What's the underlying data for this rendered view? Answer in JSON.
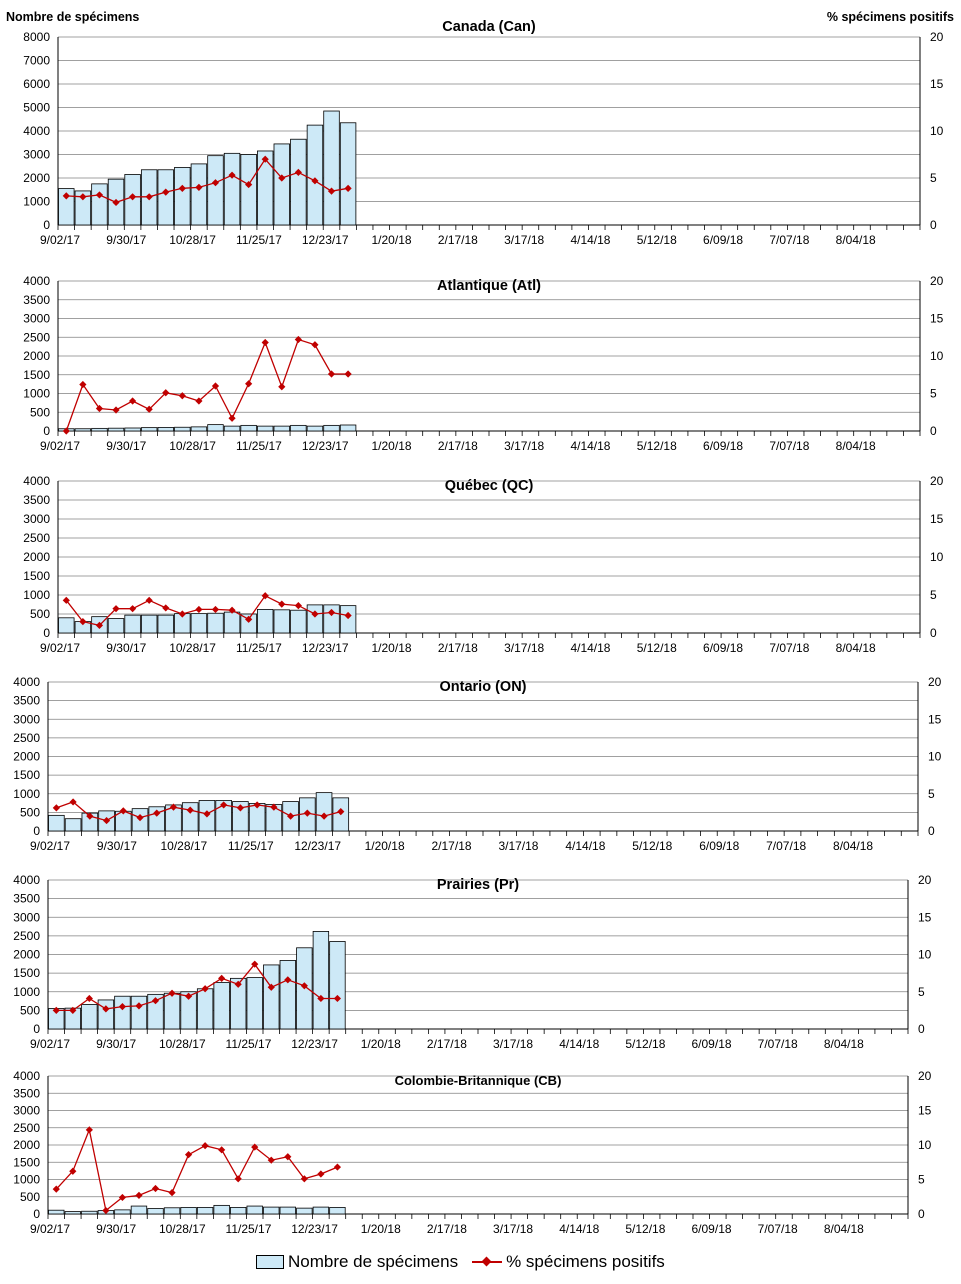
{
  "header": {
    "left_axis_title": "Nombre de spécimens",
    "right_axis_title": "% spécimens positifs"
  },
  "legend": {
    "bars_label": "Nombre de spécimens",
    "line_label": "% spécimens positifs"
  },
  "colors": {
    "bar_fill": "#cde9f7",
    "bar_stroke": "#000000",
    "line": "#c00000",
    "grid": "#808080"
  },
  "chart_data": [
    {
      "type": "bar",
      "title": "Canada (Can)",
      "x_tick_labels": [
        "9/02/17",
        "9/30/17",
        "10/28/17",
        "11/25/17",
        "12/23/17",
        "1/20/18",
        "2/17/18",
        "3/17/18",
        "4/14/18",
        "5/12/18",
        "6/09/18",
        "7/07/18",
        "8/04/18"
      ],
      "weeks_total": 52,
      "ylim": [
        0,
        8000
      ],
      "y_ticks": [
        0,
        1000,
        2000,
        3000,
        4000,
        5000,
        6000,
        7000,
        8000
      ],
      "y2lim": [
        0,
        20
      ],
      "y2_ticks": [
        0,
        5,
        10,
        15,
        20
      ],
      "series": [
        {
          "name": "Nombre de spécimens",
          "type": "bar",
          "values": [
            1550,
            1450,
            1750,
            1950,
            2150,
            2350,
            2350,
            2450,
            2600,
            2950,
            3050,
            3000,
            3150,
            3450,
            3650,
            4250,
            4850,
            4350
          ]
        },
        {
          "name": "% spécimens positifs",
          "type": "line",
          "axis": "right",
          "values": [
            3.1,
            3.0,
            3.2,
            2.4,
            3.0,
            3.0,
            3.5,
            3.9,
            4.0,
            4.5,
            5.3,
            4.3,
            7.0,
            5.0,
            5.6,
            4.7,
            3.6,
            3.9
          ]
        }
      ]
    },
    {
      "type": "bar",
      "title": "Atlantique (Atl)",
      "x_tick_labels": [
        "9/02/17",
        "9/30/17",
        "10/28/17",
        "11/25/17",
        "12/23/17",
        "1/20/18",
        "2/17/18",
        "3/17/18",
        "4/14/18",
        "5/12/18",
        "6/09/18",
        "7/07/18",
        "8/04/18"
      ],
      "weeks_total": 52,
      "ylim": [
        0,
        4000
      ],
      "y_ticks": [
        0,
        500,
        1000,
        1500,
        2000,
        2500,
        3000,
        3500,
        4000
      ],
      "y2lim": [
        0,
        20
      ],
      "y2_ticks": [
        0,
        5,
        10,
        15,
        20
      ],
      "series": [
        {
          "name": "Nombre de spécimens",
          "type": "bar",
          "values": [
            60,
            60,
            70,
            75,
            80,
            90,
            95,
            100,
            110,
            170,
            130,
            150,
            130,
            130,
            150,
            130,
            150,
            160
          ]
        },
        {
          "name": "% spécimens positifs",
          "type": "line",
          "axis": "right",
          "values": [
            0.0,
            6.2,
            3.0,
            2.8,
            4.0,
            2.9,
            5.1,
            4.7,
            4.0,
            6.0,
            1.7,
            6.3,
            11.8,
            5.9,
            12.2,
            11.5,
            7.6,
            7.6
          ]
        }
      ]
    },
    {
      "type": "bar",
      "title": "Québec (QC)",
      "x_tick_labels": [
        "9/02/17",
        "9/30/17",
        "10/28/17",
        "11/25/17",
        "12/23/17",
        "1/20/18",
        "2/17/18",
        "3/17/18",
        "4/14/18",
        "5/12/18",
        "6/09/18",
        "7/07/18",
        "8/04/18"
      ],
      "weeks_total": 52,
      "ylim": [
        0,
        4000
      ],
      "y_ticks": [
        0,
        500,
        1000,
        1500,
        2000,
        2500,
        3000,
        3500,
        4000
      ],
      "y2lim": [
        0,
        20
      ],
      "y2_ticks": [
        0,
        5,
        10,
        15,
        20
      ],
      "series": [
        {
          "name": "Nombre de spécimens",
          "type": "bar",
          "values": [
            400,
            300,
            430,
            380,
            470,
            470,
            470,
            510,
            510,
            520,
            550,
            500,
            620,
            610,
            600,
            740,
            740,
            720
          ]
        },
        {
          "name": "% spécimens positifs",
          "type": "line",
          "axis": "right",
          "values": [
            4.3,
            1.5,
            1.0,
            3.2,
            3.2,
            4.3,
            3.3,
            2.5,
            3.1,
            3.1,
            3.0,
            1.8,
            4.9,
            3.8,
            3.6,
            2.5,
            2.7,
            2.3
          ]
        }
      ]
    },
    {
      "type": "bar",
      "title": "Ontario (ON)",
      "x_tick_labels": [
        "9/02/17",
        "9/30/17",
        "10/28/17",
        "11/25/17",
        "12/23/17",
        "1/20/18",
        "2/17/18",
        "3/17/18",
        "4/14/18",
        "5/12/18",
        "6/09/18",
        "7/07/18",
        "8/04/18"
      ],
      "weeks_total": 52,
      "ylim": [
        0,
        4000
      ],
      "y_ticks": [
        0,
        500,
        1000,
        1500,
        2000,
        2500,
        3000,
        3500,
        4000
      ],
      "y2lim": [
        0,
        20
      ],
      "y2_ticks": [
        0,
        5,
        10,
        15,
        20
      ],
      "series": [
        {
          "name": "Nombre de spécimens",
          "type": "bar",
          "values": [
            420,
            330,
            480,
            540,
            530,
            600,
            650,
            700,
            760,
            820,
            820,
            790,
            740,
            710,
            790,
            890,
            1030,
            890
          ]
        },
        {
          "name": "% spécimens positifs",
          "type": "line",
          "axis": "right",
          "values": [
            3.1,
            3.9,
            2.0,
            1.4,
            2.7,
            1.8,
            2.4,
            3.2,
            2.8,
            2.3,
            3.5,
            3.1,
            3.5,
            3.2,
            2.0,
            2.4,
            2.0,
            2.6
          ]
        }
      ]
    },
    {
      "type": "bar",
      "title": "Prairies (Pr)",
      "x_tick_labels": [
        "9/02/17",
        "9/30/17",
        "10/28/17",
        "11/25/17",
        "12/23/17",
        "1/20/18",
        "2/17/18",
        "3/17/18",
        "4/14/18",
        "5/12/18",
        "6/09/18",
        "7/07/18",
        "8/04/18"
      ],
      "weeks_total": 52,
      "ylim": [
        0,
        4000
      ],
      "y_ticks": [
        0,
        500,
        1000,
        1500,
        2000,
        2500,
        3000,
        3500,
        4000
      ],
      "y2lim": [
        0,
        20
      ],
      "y2_ticks": [
        0,
        5,
        10,
        15,
        20
      ],
      "series": [
        {
          "name": "Nombre de spécimens",
          "type": "bar",
          "values": [
            550,
            560,
            660,
            780,
            880,
            880,
            930,
            960,
            1000,
            1080,
            1250,
            1360,
            1380,
            1720,
            1840,
            2180,
            2620,
            2350
          ]
        },
        {
          "name": "% spécimens positifs",
          "type": "line",
          "axis": "right",
          "values": [
            2.5,
            2.5,
            4.1,
            2.7,
            3.0,
            3.1,
            3.8,
            4.8,
            4.4,
            5.4,
            6.8,
            6.0,
            8.7,
            5.6,
            6.6,
            5.8,
            4.1,
            4.1
          ]
        }
      ]
    },
    {
      "type": "bar",
      "title": "Colombie-Britannique (CB)",
      "x_tick_labels": [
        "9/02/17",
        "9/30/17",
        "10/28/17",
        "11/25/17",
        "12/23/17",
        "1/20/18",
        "2/17/18",
        "3/17/18",
        "4/14/18",
        "5/12/18",
        "6/09/18",
        "7/07/18",
        "8/04/18"
      ],
      "weeks_total": 52,
      "ylim": [
        0,
        4000
      ],
      "y_ticks": [
        0,
        500,
        1000,
        1500,
        2000,
        2500,
        3000,
        3500,
        4000
      ],
      "y2lim": [
        0,
        20
      ],
      "y2_ticks": [
        0,
        5,
        10,
        15,
        20
      ],
      "series": [
        {
          "name": "Nombre de spécimens",
          "type": "bar",
          "values": [
            110,
            70,
            80,
            100,
            120,
            230,
            160,
            180,
            190,
            190,
            250,
            190,
            230,
            200,
            200,
            170,
            200,
            190
          ]
        },
        {
          "name": "% spécimens positifs",
          "type": "line",
          "axis": "right",
          "values": [
            3.6,
            6.2,
            12.2,
            0.5,
            2.4,
            2.7,
            3.7,
            3.1,
            8.6,
            9.9,
            9.3,
            5.1,
            9.7,
            7.8,
            8.3,
            5.1,
            5.8,
            6.8
          ]
        }
      ]
    }
  ]
}
